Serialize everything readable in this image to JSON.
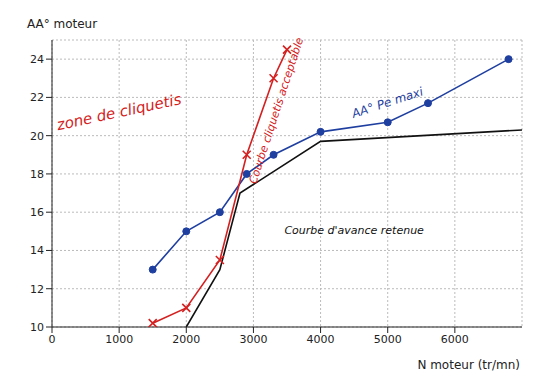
{
  "chart_data": {
    "type": "line",
    "x_label": "N moteur (tr/mn)",
    "y_label": "AA° moteur",
    "xlim": [
      0,
      7000
    ],
    "xticks": [
      0,
      1000,
      2000,
      3000,
      4000,
      5000,
      6000
    ],
    "ylim": [
      10,
      25
    ],
    "yticks": [
      10,
      12,
      14,
      16,
      18,
      20,
      22,
      24
    ],
    "grid": true,
    "series": [
      {
        "color": "#1f3fa0",
        "marker": "circle",
        "x": [
          1500,
          2000,
          2500,
          2900,
          3300,
          4000,
          5000,
          5600,
          6800
        ],
        "values": [
          13,
          15,
          16,
          18,
          19,
          20.2,
          20.7,
          21.7,
          24
        ]
      },
      {
        "color": "#d42020",
        "marker": "x",
        "x": [
          1500,
          2000,
          2500,
          2900,
          3300,
          3500
        ],
        "values": [
          10.2,
          11,
          13.5,
          19,
          23,
          24.5
        ]
      },
      {
        "color": "#111111",
        "marker": "none",
        "x": [
          2000,
          2500,
          2800,
          4000,
          7000
        ],
        "values": [
          10,
          13,
          17,
          19.7,
          20.3
        ]
      }
    ],
    "annotations": [
      {
        "text": "zone de cliquetis",
        "x": 1000,
        "y": 21.2,
        "color": "#d42020"
      },
      {
        "text": "Courbe cliquetis acceptable",
        "x": 3350,
        "y": 21.3,
        "color": "#d42020"
      },
      {
        "text": "AA° Pe maxi",
        "x": 5000,
        "y": 21.7,
        "color": "#1f3fa0"
      },
      {
        "text": "Courbe d'avance retenue",
        "x": 4500,
        "y": 15,
        "color": "#111111"
      }
    ]
  }
}
